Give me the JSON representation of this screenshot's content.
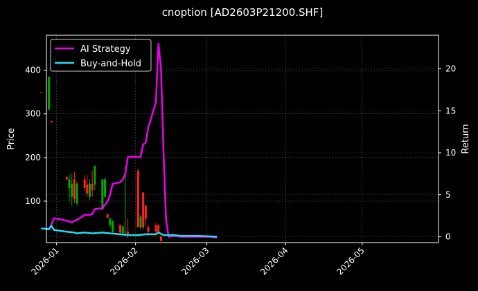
{
  "chart_data": {
    "type": "line",
    "title": "cnoption [AD2603P21200.SHF]",
    "ylabel": "Price",
    "y2label": "Return",
    "x_ticks": [
      "2026-01",
      "2026-02",
      "2026-03",
      "2026-04",
      "2026-05"
    ],
    "xlim": [
      "2025-12-28",
      "2026-05-31"
    ],
    "ylim": [
      5,
      480
    ],
    "y_ticks": [
      100,
      200,
      300,
      400
    ],
    "y2lim": [
      -0.7,
      24.0
    ],
    "y2_ticks": [
      0,
      5,
      10,
      15,
      20
    ],
    "grid": true,
    "legend_position": "top-left",
    "colors": {
      "background": "#000000",
      "up": "#00aa00",
      "down": "#ff2222",
      "ai": "#ee00ee",
      "bh": "#22ddee"
    },
    "candles": [
      {
        "date": "2025-12-26",
        "o": 350,
        "h": 350,
        "l": 349,
        "c": 350
      },
      {
        "date": "2025-12-29",
        "o": 310,
        "h": 385,
        "l": 308,
        "c": 385
      },
      {
        "date": "2025-12-30",
        "o": 284,
        "h": 284,
        "l": 280,
        "c": 281
      },
      {
        "date": "2026-01-05",
        "o": 155,
        "h": 157,
        "l": 146,
        "c": 150
      },
      {
        "date": "2026-01-06",
        "o": 130,
        "h": 160,
        "l": 100,
        "c": 150
      },
      {
        "date": "2026-01-07",
        "o": 110,
        "h": 163,
        "l": 90,
        "c": 140
      },
      {
        "date": "2026-01-08",
        "o": 150,
        "h": 167,
        "l": 95,
        "c": 105
      },
      {
        "date": "2026-01-09",
        "o": 95,
        "h": 145,
        "l": 90,
        "c": 140
      },
      {
        "date": "2026-01-12",
        "o": 150,
        "h": 158,
        "l": 123,
        "c": 130
      },
      {
        "date": "2026-01-13",
        "o": 138,
        "h": 160,
        "l": 110,
        "c": 118
      },
      {
        "date": "2026-01-14",
        "o": 110,
        "h": 150,
        "l": 103,
        "c": 140
      },
      {
        "date": "2026-01-15",
        "o": 140,
        "h": 170,
        "l": 110,
        "c": 125
      },
      {
        "date": "2026-01-16",
        "o": 138,
        "h": 181,
        "l": 125,
        "c": 181
      },
      {
        "date": "2026-01-19",
        "o": 80,
        "h": 150,
        "l": 80,
        "c": 150
      },
      {
        "date": "2026-01-20",
        "o": 110,
        "h": 155,
        "l": 108,
        "c": 150
      },
      {
        "date": "2026-01-21",
        "o": 70,
        "h": 72,
        "l": 60,
        "c": 62
      },
      {
        "date": "2026-01-22",
        "o": 45,
        "h": 63,
        "l": 40,
        "c": 60
      },
      {
        "date": "2026-01-23",
        "o": 30,
        "h": 56,
        "l": 28,
        "c": 54
      },
      {
        "date": "2026-01-26",
        "o": 46,
        "h": 46,
        "l": 26,
        "c": 28
      },
      {
        "date": "2026-01-27",
        "o": 27,
        "h": 45,
        "l": 25,
        "c": 42
      },
      {
        "date": "2026-01-28",
        "o": 30,
        "h": 180,
        "l": 20,
        "c": 30
      },
      {
        "date": "2026-01-29",
        "o": 30,
        "h": 60,
        "l": 15,
        "c": 25
      },
      {
        "date": "2026-02-02",
        "o": 170,
        "h": 175,
        "l": 40,
        "c": 40
      },
      {
        "date": "2026-02-03",
        "o": 40,
        "h": 70,
        "l": 35,
        "c": 65
      },
      {
        "date": "2026-02-04",
        "o": 120,
        "h": 120,
        "l": 35,
        "c": 40
      },
      {
        "date": "2026-02-05",
        "o": 90,
        "h": 90,
        "l": 45,
        "c": 60
      },
      {
        "date": "2026-02-06",
        "o": 40,
        "h": 45,
        "l": 25,
        "c": 30
      },
      {
        "date": "2026-02-09",
        "o": 45,
        "h": 50,
        "l": 25,
        "c": 30
      },
      {
        "date": "2026-02-10",
        "o": 45,
        "h": 47,
        "l": 25,
        "c": 28
      },
      {
        "date": "2026-02-11",
        "o": 20,
        "h": 20,
        "l": 8,
        "c": 8
      }
    ],
    "series": [
      {
        "name": "AI Strategy",
        "axis": "right",
        "points": [
          [
            "2025-12-26",
            1.0
          ],
          [
            "2025-12-29",
            0.9
          ],
          [
            "2025-12-30",
            1.5
          ],
          [
            "2025-12-31",
            2.2
          ],
          [
            "2026-01-02",
            2.1
          ],
          [
            "2026-01-05",
            1.9
          ],
          [
            "2026-01-06",
            1.8
          ],
          [
            "2026-01-07",
            1.7
          ],
          [
            "2026-01-08",
            1.9
          ],
          [
            "2026-01-09",
            2.0
          ],
          [
            "2026-01-12",
            2.6
          ],
          [
            "2026-01-13",
            2.6
          ],
          [
            "2026-01-14",
            2.6
          ],
          [
            "2026-01-15",
            2.7
          ],
          [
            "2026-01-16",
            3.3
          ],
          [
            "2026-01-19",
            3.4
          ],
          [
            "2026-01-20",
            3.8
          ],
          [
            "2026-01-21",
            4.2
          ],
          [
            "2026-01-22",
            5.0
          ],
          [
            "2026-01-23",
            6.3
          ],
          [
            "2026-01-26",
            6.5
          ],
          [
            "2026-01-27",
            6.8
          ],
          [
            "2026-01-28",
            7.5
          ],
          [
            "2026-01-29",
            9.5
          ],
          [
            "2026-02-02",
            9.5
          ],
          [
            "2026-02-03",
            9.5
          ],
          [
            "2026-02-04",
            11.0
          ],
          [
            "2026-02-05",
            11.2
          ],
          [
            "2026-02-06",
            13.0
          ],
          [
            "2026-02-09",
            16.0
          ],
          [
            "2026-02-10",
            23.0
          ],
          [
            "2026-02-11",
            20.0
          ],
          [
            "2026-02-12",
            10.0
          ],
          [
            "2026-02-13",
            2.0
          ],
          [
            "2026-02-14",
            0.0
          ],
          [
            "2026-02-16",
            0.1
          ],
          [
            "2026-02-19",
            0.0
          ],
          [
            "2026-02-23",
            0.0
          ],
          [
            "2026-02-26",
            0.0
          ],
          [
            "2026-03-02",
            0.0
          ],
          [
            "2026-03-05",
            -0.1
          ]
        ]
      },
      {
        "name": "Buy-and-Hold",
        "axis": "right",
        "points": [
          [
            "2025-12-26",
            1.0
          ],
          [
            "2025-12-29",
            0.9
          ],
          [
            "2025-12-30",
            1.3
          ],
          [
            "2025-12-31",
            0.8
          ],
          [
            "2026-01-05",
            0.6
          ],
          [
            "2026-01-08",
            0.5
          ],
          [
            "2026-01-09",
            0.4
          ],
          [
            "2026-01-12",
            0.5
          ],
          [
            "2026-01-15",
            0.4
          ],
          [
            "2026-01-19",
            0.5
          ],
          [
            "2026-01-22",
            0.4
          ],
          [
            "2026-01-26",
            0.3
          ],
          [
            "2026-01-29",
            0.2
          ],
          [
            "2026-02-02",
            0.2
          ],
          [
            "2026-02-05",
            0.3
          ],
          [
            "2026-02-09",
            0.3
          ],
          [
            "2026-02-10",
            0.5
          ],
          [
            "2026-02-12",
            0.2
          ],
          [
            "2026-02-16",
            0.2
          ],
          [
            "2026-02-19",
            0.1
          ],
          [
            "2026-02-26",
            0.1
          ],
          [
            "2026-03-05",
            0.0
          ]
        ]
      }
    ]
  }
}
